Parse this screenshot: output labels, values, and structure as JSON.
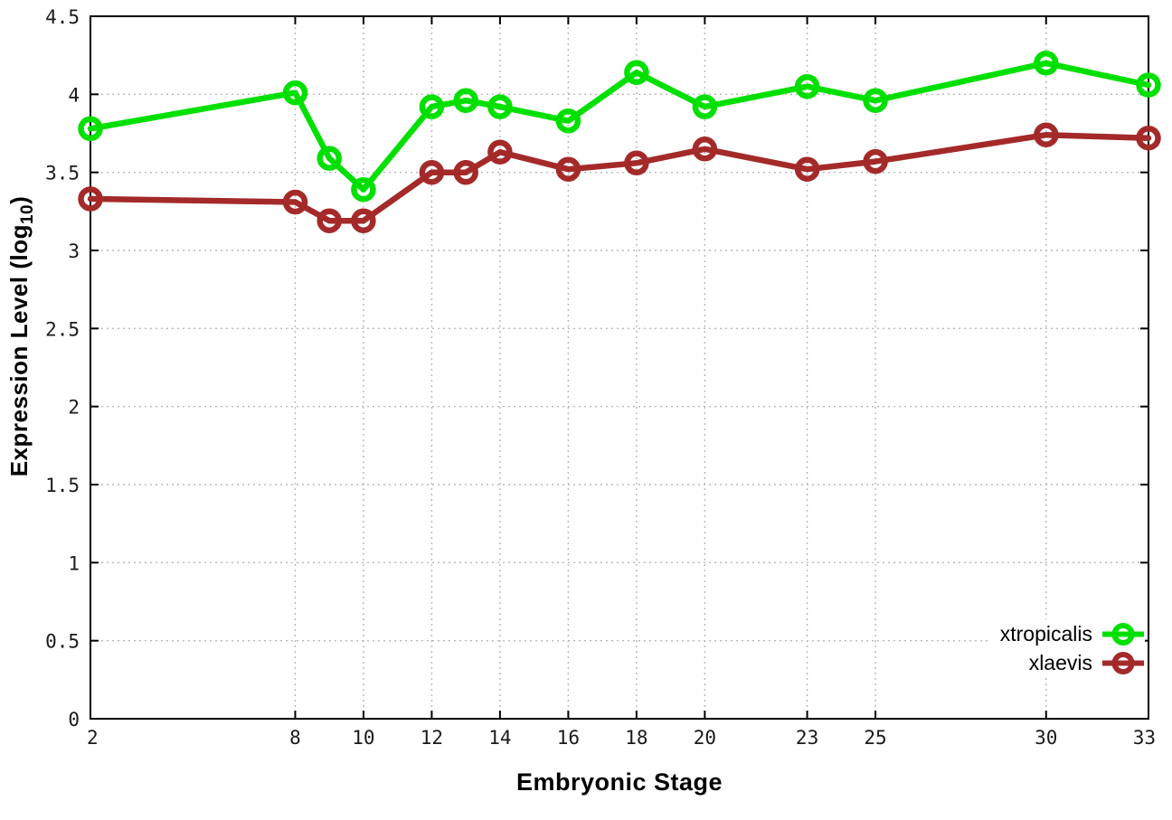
{
  "chart_data": {
    "type": "line",
    "xlabel": "Embryonic Stage",
    "ylabel": {
      "text": "Expression Level (log",
      "sub": "10",
      "suffix": ")"
    },
    "x": [
      2,
      8,
      9,
      10,
      12,
      13,
      14,
      16,
      18,
      20,
      23,
      25,
      30,
      33
    ],
    "xticks": [
      2,
      8,
      10,
      12,
      14,
      16,
      18,
      20,
      23,
      25,
      30,
      33
    ],
    "yticks": [
      0,
      0.5,
      1,
      1.5,
      2,
      2.5,
      3,
      3.5,
      4,
      4.5
    ],
    "xlim": [
      2,
      33
    ],
    "ylim": [
      0,
      4.5
    ],
    "grid": true,
    "legend_position": "bottom-right",
    "series": [
      {
        "name": "xtropicalis",
        "color": "#00e000",
        "values": [
          3.78,
          4.01,
          3.59,
          3.39,
          3.92,
          3.96,
          3.92,
          3.83,
          4.14,
          3.92,
          4.05,
          3.96,
          4.2,
          4.06
        ]
      },
      {
        "name": "xlaevis",
        "color": "#a42a2a",
        "values": [
          3.33,
          3.31,
          3.19,
          3.19,
          3.5,
          3.5,
          3.63,
          3.52,
          3.56,
          3.65,
          3.52,
          3.57,
          3.74,
          3.72
        ]
      }
    ]
  },
  "styles": {
    "grid_color": "#b8b8b8",
    "axis_color": "#000000",
    "tick_label_color": "#1a1a1a"
  }
}
